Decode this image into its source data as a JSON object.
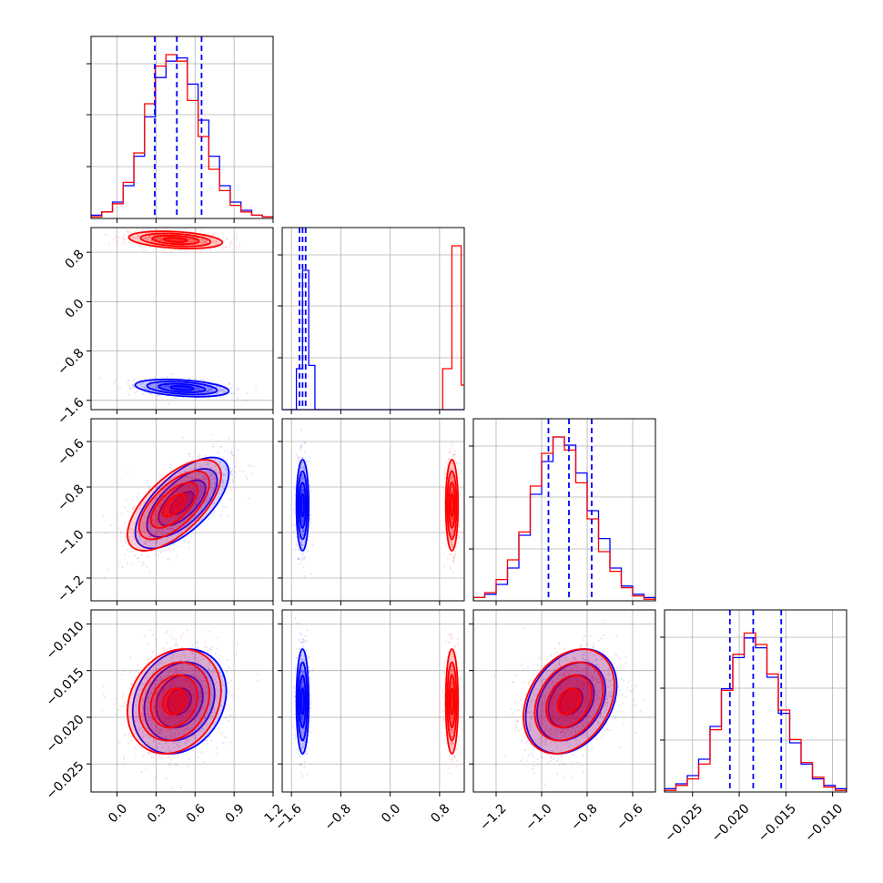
{
  "chart_data": {
    "type": "corner",
    "grid": true,
    "colors": {
      "blue": "#0000ff",
      "red": "#ff0000"
    },
    "parameters": [
      {
        "range": [
          -0.2,
          1.2
        ],
        "ticks": [
          0.0,
          0.3,
          0.6,
          0.9,
          1.2
        ],
        "tick_labels": [
          "0.0",
          "0.3",
          "0.6",
          "0.9",
          "1.2"
        ]
      },
      {
        "range": [
          -1.75,
          1.2
        ],
        "ticks": [
          -1.6,
          -0.8,
          0.0,
          0.8
        ],
        "tick_labels": [
          "−1.6",
          "−0.8",
          "0.0",
          "0.8"
        ]
      },
      {
        "range": [
          -1.3,
          -0.5
        ],
        "ticks": [
          -1.2,
          -1.0,
          -0.8,
          -0.6
        ],
        "tick_labels": [
          "−1.2",
          "−1.0",
          "−0.8",
          "−0.6"
        ]
      },
      {
        "range": [
          -0.028,
          -0.0085
        ],
        "ticks": [
          -0.025,
          -0.02,
          -0.015,
          -0.01
        ],
        "tick_labels": [
          "−0.025",
          "−0.020",
          "−0.015",
          "−0.010"
        ]
      }
    ],
    "histograms": [
      {
        "series": [
          {
            "name": "blue",
            "values": [
              0.02,
              0.04,
              0.1,
              0.2,
              0.38,
              0.62,
              0.86,
              0.96,
              0.98,
              0.82,
              0.6,
              0.38,
              0.2,
              0.1,
              0.05,
              0.02,
              0.01
            ]
          },
          {
            "name": "red",
            "values": [
              0.01,
              0.04,
              0.09,
              0.22,
              0.4,
              0.7,
              0.93,
              1.0,
              0.96,
              0.72,
              0.5,
              0.3,
              0.17,
              0.08,
              0.04,
              0.02,
              0.01
            ]
          }
        ],
        "quantile_lines": [
          0.29,
          0.46,
          0.65
        ]
      },
      {
        "series": [
          {
            "name": "blue",
            "values": [
              0.0,
              0.25,
              0.85,
              0.27,
              0.0
            ]
          },
          {
            "name": "red",
            "values": [
              0.25,
              1.0,
              0.15
            ]
          }
        ],
        "quantile_lines": [
          -1.47,
          -1.42,
          -1.37
        ]
      },
      {
        "series": [
          {
            "name": "blue",
            "values": [
              0.02,
              0.04,
              0.1,
              0.2,
              0.4,
              0.65,
              0.85,
              1.0,
              0.95,
              0.78,
              0.55,
              0.38,
              0.2,
              0.09,
              0.04,
              0.02
            ]
          },
          {
            "name": "red",
            "values": [
              0.02,
              0.05,
              0.13,
              0.25,
              0.42,
              0.7,
              0.9,
              1.0,
              0.92,
              0.72,
              0.5,
              0.3,
              0.18,
              0.08,
              0.03,
              0.01
            ]
          }
        ],
        "quantile_lines": [
          -0.97,
          -0.88,
          -0.78
        ]
      },
      {
        "series": [
          {
            "name": "blue",
            "values": [
              0.02,
              0.05,
              0.1,
              0.2,
              0.4,
              0.63,
              0.82,
              0.94,
              0.88,
              0.7,
              0.48,
              0.3,
              0.17,
              0.08,
              0.04,
              0.02
            ]
          },
          {
            "name": "red",
            "values": [
              0.01,
              0.04,
              0.08,
              0.17,
              0.38,
              0.62,
              0.84,
              0.97,
              0.9,
              0.72,
              0.5,
              0.32,
              0.18,
              0.09,
              0.03,
              0.01
            ]
          }
        ],
        "quantile_lines": [
          -0.021,
          -0.0185,
          -0.0155
        ]
      }
    ],
    "pairs": [
      {
        "row": 1,
        "col": 0,
        "clusters": [
          {
            "color": "blue",
            "mean": [
              0.5,
              -1.4
            ],
            "sd": [
              0.18,
              0.07
            ],
            "rho": -0.35
          },
          {
            "color": "red",
            "mean": [
              0.45,
              1.0
            ],
            "sd": [
              0.18,
              0.07
            ],
            "rho": -0.3
          }
        ]
      },
      {
        "row": 2,
        "col": 0,
        "clusters": [
          {
            "color": "blue",
            "mean": [
              0.5,
              -0.87
            ],
            "sd": [
              0.18,
              0.1
            ],
            "rho": 0.65
          },
          {
            "color": "red",
            "mean": [
              0.44,
              -0.88
            ],
            "sd": [
              0.18,
              0.1
            ],
            "rho": 0.65
          }
        ]
      },
      {
        "row": 2,
        "col": 1,
        "clusters": [
          {
            "color": "blue",
            "mean": [
              -1.42,
              -0.88
            ],
            "sd": [
              0.05,
              0.1
            ],
            "rho": 0.0
          },
          {
            "color": "red",
            "mean": [
              1.0,
              -0.88
            ],
            "sd": [
              0.05,
              0.1
            ],
            "rho": 0.0
          }
        ]
      },
      {
        "row": 3,
        "col": 0,
        "clusters": [
          {
            "color": "blue",
            "mean": [
              0.48,
              -0.0183
            ],
            "sd": [
              0.18,
              0.0028
            ],
            "rho": 0.2
          },
          {
            "color": "red",
            "mean": [
              0.44,
              -0.0183
            ],
            "sd": [
              0.18,
              0.0028
            ],
            "rho": 0.2
          }
        ]
      },
      {
        "row": 3,
        "col": 1,
        "clusters": [
          {
            "color": "blue",
            "mean": [
              -1.42,
              -0.0183
            ],
            "sd": [
              0.05,
              0.0028
            ],
            "rho": 0.0
          },
          {
            "color": "red",
            "mean": [
              1.0,
              -0.0183
            ],
            "sd": [
              0.05,
              0.0028
            ],
            "rho": 0.0
          }
        ]
      },
      {
        "row": 3,
        "col": 2,
        "clusters": [
          {
            "color": "blue",
            "mean": [
              -0.87,
              -0.0183
            ],
            "sd": [
              0.1,
              0.0028
            ],
            "rho": 0.3
          },
          {
            "color": "red",
            "mean": [
              -0.88,
              -0.0183
            ],
            "sd": [
              0.1,
              0.0028
            ],
            "rho": 0.3
          }
        ]
      }
    ]
  }
}
